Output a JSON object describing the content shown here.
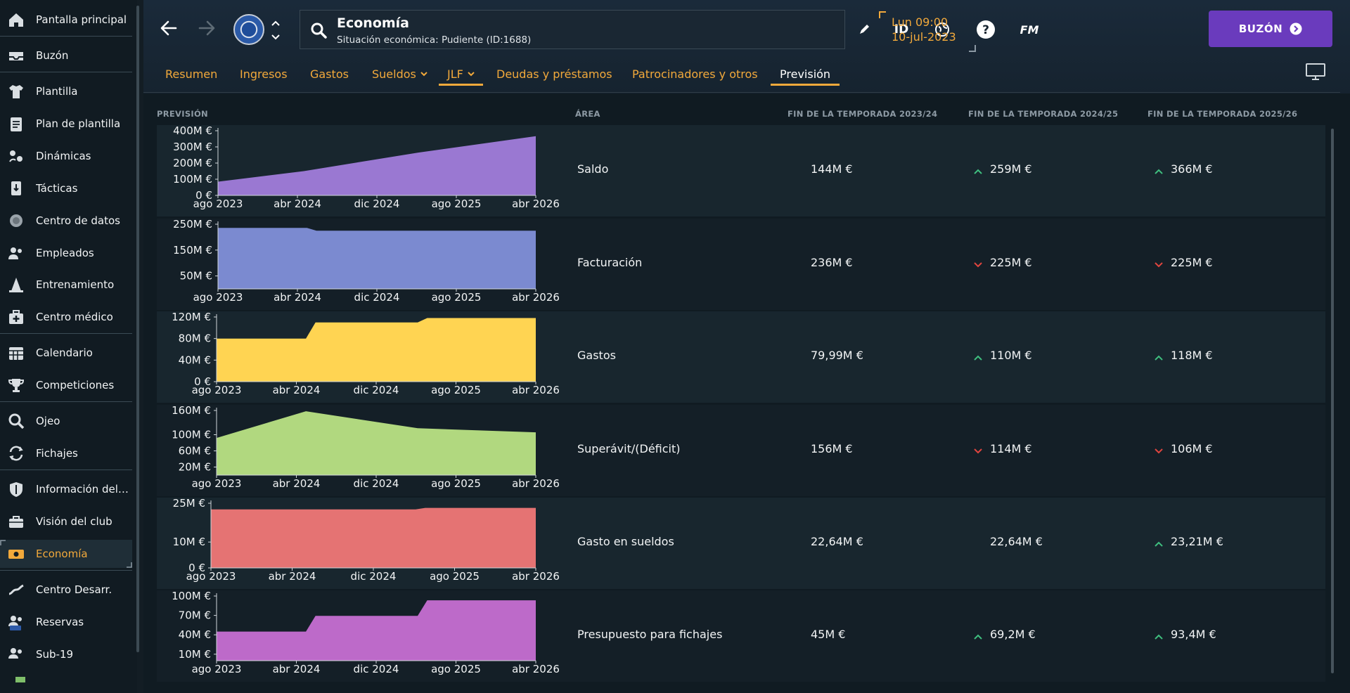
{
  "sidebar": {
    "items": [
      {
        "label": "Pantalla principal",
        "icon": "home-icon"
      },
      {
        "label": "Buzón",
        "icon": "inbox-icon"
      },
      {
        "label": "Plantilla",
        "icon": "shirt-icon"
      },
      {
        "label": "Plan de plantilla",
        "icon": "clipboard-icon"
      },
      {
        "label": "Dinámicas",
        "icon": "dynamics-icon"
      },
      {
        "label": "Tácticas",
        "icon": "tactics-icon"
      },
      {
        "label": "Centro de datos",
        "icon": "data-hub-icon"
      },
      {
        "label": "Empleados",
        "icon": "staff-icon"
      },
      {
        "label": "Entrenamiento",
        "icon": "training-cone-icon"
      },
      {
        "label": "Centro médico",
        "icon": "medical-kit-icon"
      },
      {
        "label": "Calendario",
        "icon": "calendar-icon"
      },
      {
        "label": "Competiciones",
        "icon": "trophy-icon"
      },
      {
        "label": "Ojeo",
        "icon": "magnifier-icon"
      },
      {
        "label": "Fichajes",
        "icon": "transfers-icon"
      },
      {
        "label": "Información del club",
        "icon": "club-shield-icon"
      },
      {
        "label": "Visión del club",
        "icon": "briefcase-icon"
      },
      {
        "label": "Economía",
        "icon": "money-icon"
      },
      {
        "label": "Centro Desarr.",
        "icon": "development-icon"
      },
      {
        "label": "Reservas",
        "icon": "reserves-icon"
      },
      {
        "label": "Sub-19",
        "icon": "u19-icon"
      }
    ]
  },
  "header": {
    "title": "Economía",
    "subtitle": "Situación económica: Pudiente (ID:1688)",
    "id_label": "ID",
    "fm_label": "FM",
    "date_line1": "Lun 09:00",
    "date_line2": "10-jul-2023",
    "inbox_label": "BUZÓN"
  },
  "tabs": [
    {
      "label": "Resumen",
      "selected": false,
      "dropdown": false
    },
    {
      "label": "Ingresos",
      "selected": false,
      "dropdown": false
    },
    {
      "label": "Gastos",
      "selected": false,
      "dropdown": false
    },
    {
      "label": "Sueldos",
      "selected": false,
      "dropdown": true
    },
    {
      "label": "JLF",
      "selected": false,
      "dropdown": true
    },
    {
      "label": "Deudas y préstamos",
      "selected": false,
      "dropdown": false
    },
    {
      "label": "Patrocinadores y otros",
      "selected": false,
      "dropdown": false
    },
    {
      "label": "Previsión",
      "selected": true,
      "dropdown": false
    }
  ],
  "columns": {
    "forecast": "PREVISIÓN",
    "area": "ÁREA",
    "season1": "FIN DE LA TEMPORADA 2023/24",
    "season2": "FIN DE LA TEMPORADA 2024/25",
    "season3": "FIN DE LA TEMPORADA 2025/26"
  },
  "colors": {
    "accent": "#f2a93b",
    "inbox_button": "#6a3bbd",
    "trend_up": "#3fbf7f",
    "trend_down": "#e0453f"
  },
  "chart_data": [
    {
      "type": "area",
      "area": "Saldo",
      "color": "#9a78d2",
      "x_ticks": [
        "ago 2023",
        "abr 2024",
        "dic 2024",
        "ago 2025",
        "abr 2026"
      ],
      "y_ticks": [
        "400M €",
        "300M €",
        "200M €",
        "100M €",
        "0 €"
      ],
      "y_tick_values": [
        400,
        300,
        200,
        100,
        0
      ],
      "ylim": [
        0,
        400
      ],
      "points": [
        [
          0,
          85
        ],
        [
          0.27,
          150
        ],
        [
          0.63,
          265
        ],
        [
          1.0,
          366
        ]
      ],
      "values": [
        "144M €",
        "259M €",
        "366M €"
      ],
      "trends": [
        "none",
        "up",
        "up"
      ]
    },
    {
      "type": "area",
      "area": "Facturación",
      "color": "#7b8ad0",
      "x_ticks": [
        "ago 2023",
        "abr 2024",
        "dic 2024",
        "ago 2025",
        "abr 2026"
      ],
      "y_ticks": [
        "250M €",
        "150M €",
        "50M €"
      ],
      "y_tick_values": [
        250,
        150,
        50
      ],
      "ylim": [
        0,
        250
      ],
      "points": [
        [
          0,
          236
        ],
        [
          0.28,
          236
        ],
        [
          0.31,
          225
        ],
        [
          1.0,
          225
        ]
      ],
      "values": [
        "236M €",
        "225M €",
        "225M €"
      ],
      "trends": [
        "none",
        "down",
        "down"
      ]
    },
    {
      "type": "area",
      "area": "Gastos",
      "color": "#ffd452",
      "x_ticks": [
        "ago 2023",
        "abr 2024",
        "dic 2024",
        "ago 2025",
        "abr 2026"
      ],
      "y_ticks": [
        "120M €",
        "80M €",
        "40M €",
        "0 €"
      ],
      "y_tick_values": [
        120,
        80,
        40,
        0
      ],
      "ylim": [
        0,
        120
      ],
      "points": [
        [
          0,
          80
        ],
        [
          0.28,
          80
        ],
        [
          0.31,
          110
        ],
        [
          0.63,
          110
        ],
        [
          0.66,
          118
        ],
        [
          1.0,
          118
        ]
      ],
      "values": [
        "79,99M €",
        "110M €",
        "118M €"
      ],
      "trends": [
        "none",
        "up",
        "up"
      ]
    },
    {
      "type": "area",
      "area": "Superávit/(Déficit)",
      "color": "#b1d87f",
      "x_ticks": [
        "ago 2023",
        "abr 2024",
        "dic 2024",
        "ago 2025",
        "abr 2026"
      ],
      "y_ticks": [
        "160M €",
        "100M €",
        "60M €",
        "20M €"
      ],
      "y_tick_values": [
        160,
        100,
        60,
        20
      ],
      "ylim": [
        0,
        160
      ],
      "points": [
        [
          0,
          92
        ],
        [
          0.28,
          158
        ],
        [
          0.63,
          116
        ],
        [
          1.0,
          106
        ]
      ],
      "values": [
        "156M €",
        "114M €",
        "106M €"
      ],
      "trends": [
        "none",
        "down",
        "down"
      ]
    },
    {
      "type": "area",
      "area": "Gasto en sueldos",
      "color": "#e57373",
      "x_ticks": [
        "ago 2023",
        "abr 2024",
        "dic 2024",
        "ago 2025",
        "abr 2026"
      ],
      "y_ticks": [
        "25M €",
        "10M €",
        "0 €"
      ],
      "y_tick_values": [
        25,
        10,
        0
      ],
      "ylim": [
        0,
        25
      ],
      "points": [
        [
          0,
          22.64
        ],
        [
          0.63,
          22.64
        ],
        [
          0.66,
          23.21
        ],
        [
          1.0,
          23.21
        ]
      ],
      "values": [
        "22,64M €",
        "22,64M €",
        "23,21M €"
      ],
      "trends": [
        "none",
        "none",
        "up"
      ]
    },
    {
      "type": "area",
      "area": "Presupuesto para fichajes",
      "color": "#bd6ac9",
      "x_ticks": [
        "ago 2023",
        "abr 2024",
        "dic 2024",
        "ago 2025",
        "abr 2026"
      ],
      "y_ticks": [
        "100M €",
        "70M €",
        "40M €",
        "10M €"
      ],
      "y_tick_values": [
        100,
        70,
        40,
        10
      ],
      "ylim": [
        0,
        100
      ],
      "points": [
        [
          0,
          45
        ],
        [
          0.28,
          45
        ],
        [
          0.31,
          69.2
        ],
        [
          0.63,
          69.2
        ],
        [
          0.66,
          93.4
        ],
        [
          1.0,
          93.4
        ]
      ],
      "values": [
        "45M €",
        "69,2M €",
        "93,4M €"
      ],
      "trends": [
        "none",
        "up",
        "up"
      ]
    }
  ]
}
